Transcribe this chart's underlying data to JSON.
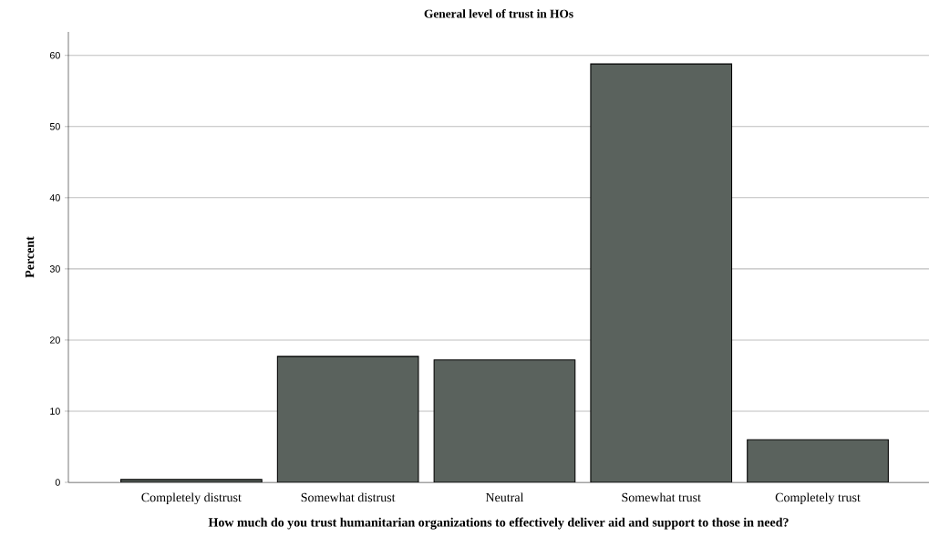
{
  "chart_data": {
    "type": "bar",
    "title": "General level of trust in HOs",
    "xlabel": "How much do you trust humanitarian organizations to effectively deliver aid and support to those in need?",
    "ylabel": "Percent",
    "categories": [
      "Completely distrust",
      "Somewhat distrust",
      "Neutral",
      "Somewhat trust",
      "Completely trust"
    ],
    "values": [
      0.4,
      17.7,
      17.2,
      58.8,
      6.0
    ],
    "color": "#5a625d",
    "ylim": [
      0,
      63.3
    ],
    "yticks": [
      0,
      10,
      20,
      30,
      40,
      50,
      60
    ],
    "grid": "y"
  }
}
